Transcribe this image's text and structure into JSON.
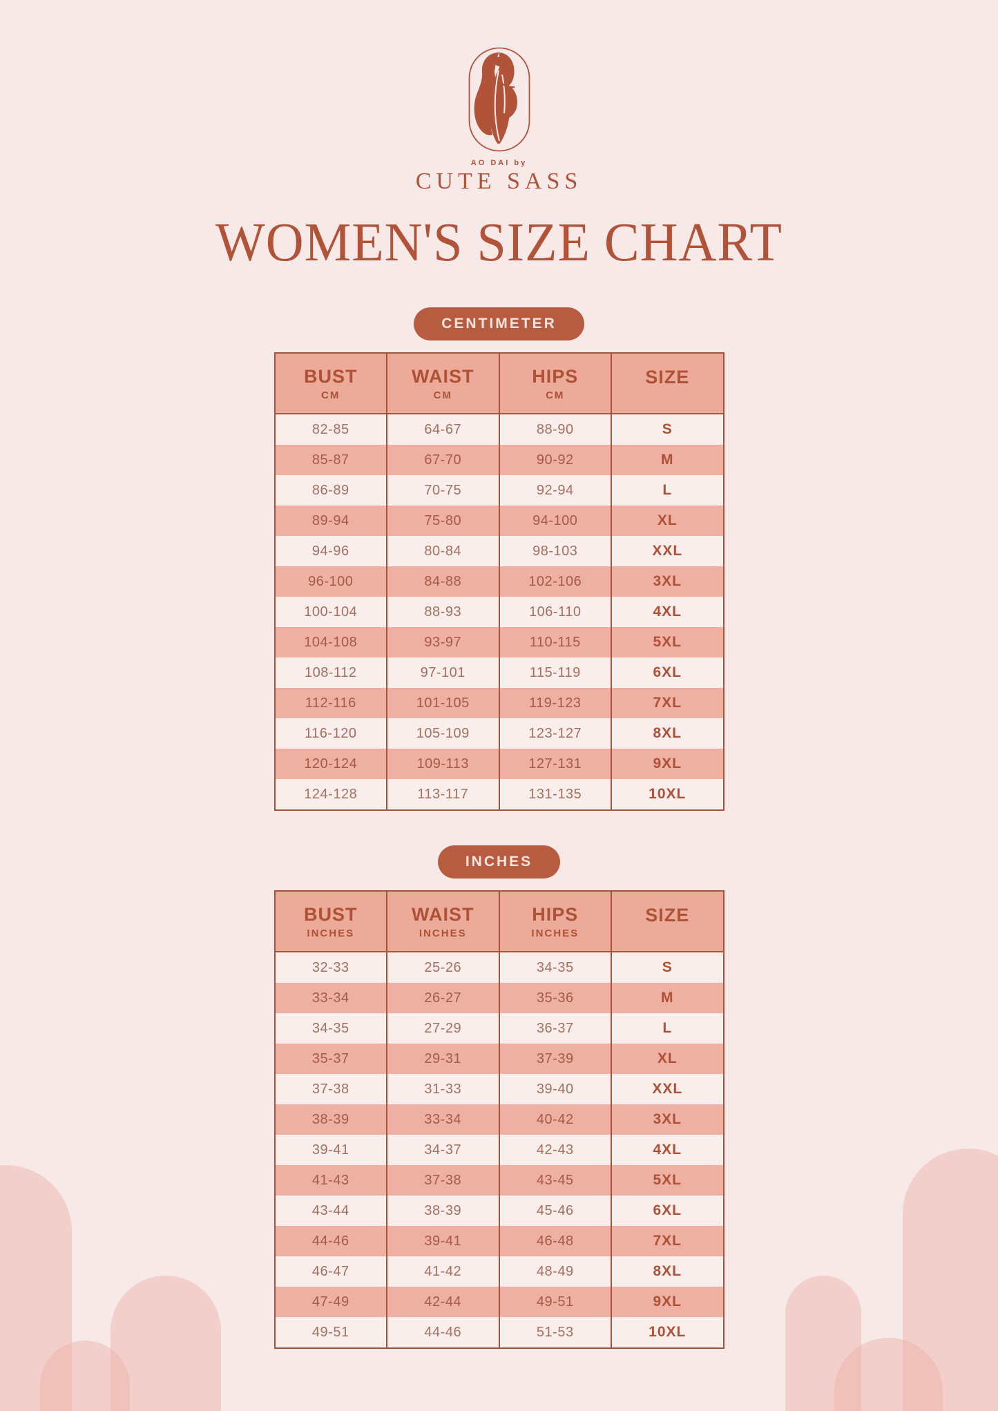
{
  "colors": {
    "accent": "#b15339",
    "pill_bg": "#b75c41",
    "head_bg": "#ecaa98",
    "row_dark": "#eeb0a3",
    "row_light": "#f9eeec",
    "border": "#a8523a"
  },
  "logo": {
    "tagline": "AO DAI by",
    "brand": "CUTE SASS"
  },
  "title": "WOMEN'S SIZE CHART",
  "tables": [
    {
      "badge": "CENTIMETER",
      "headers": [
        {
          "label": "BUST",
          "sub": "CM"
        },
        {
          "label": "WAIST",
          "sub": "CM"
        },
        {
          "label": "HIPS",
          "sub": "CM"
        },
        {
          "label": "SIZE",
          "sub": ""
        }
      ],
      "rows": [
        [
          "82-85",
          "64-67",
          "88-90",
          "S"
        ],
        [
          "85-87",
          "67-70",
          "90-92",
          "M"
        ],
        [
          "86-89",
          "70-75",
          "92-94",
          "L"
        ],
        [
          "89-94",
          "75-80",
          "94-100",
          "XL"
        ],
        [
          "94-96",
          "80-84",
          "98-103",
          "XXL"
        ],
        [
          "96-100",
          "84-88",
          "102-106",
          "3XL"
        ],
        [
          "100-104",
          "88-93",
          "106-110",
          "4XL"
        ],
        [
          "104-108",
          "93-97",
          "110-115",
          "5XL"
        ],
        [
          "108-112",
          "97-101",
          "115-119",
          "6XL"
        ],
        [
          "112-116",
          "101-105",
          "119-123",
          "7XL"
        ],
        [
          "116-120",
          "105-109",
          "123-127",
          "8XL"
        ],
        [
          "120-124",
          "109-113",
          "127-131",
          "9XL"
        ],
        [
          "124-128",
          "113-117",
          "131-135",
          "10XL"
        ]
      ]
    },
    {
      "badge": "INCHES",
      "headers": [
        {
          "label": "BUST",
          "sub": "INCHES"
        },
        {
          "label": "WAIST",
          "sub": "INCHES"
        },
        {
          "label": "HIPS",
          "sub": "INCHES"
        },
        {
          "label": "SIZE",
          "sub": ""
        }
      ],
      "rows": [
        [
          "32-33",
          "25-26",
          "34-35",
          "S"
        ],
        [
          "33-34",
          "26-27",
          "35-36",
          "M"
        ],
        [
          "34-35",
          "27-29",
          "36-37",
          "L"
        ],
        [
          "35-37",
          "29-31",
          "37-39",
          "XL"
        ],
        [
          "37-38",
          "31-33",
          "39-40",
          "XXL"
        ],
        [
          "38-39",
          "33-34",
          "40-42",
          "3XL"
        ],
        [
          "39-41",
          "34-37",
          "42-43",
          "4XL"
        ],
        [
          "41-43",
          "37-38",
          "43-45",
          "5XL"
        ],
        [
          "43-44",
          "38-39",
          "45-46",
          "6XL"
        ],
        [
          "44-46",
          "39-41",
          "46-48",
          "7XL"
        ],
        [
          "46-47",
          "41-42",
          "48-49",
          "8XL"
        ],
        [
          "47-49",
          "42-44",
          "49-51",
          "9XL"
        ],
        [
          "49-51",
          "44-46",
          "51-53",
          "10XL"
        ]
      ]
    }
  ]
}
